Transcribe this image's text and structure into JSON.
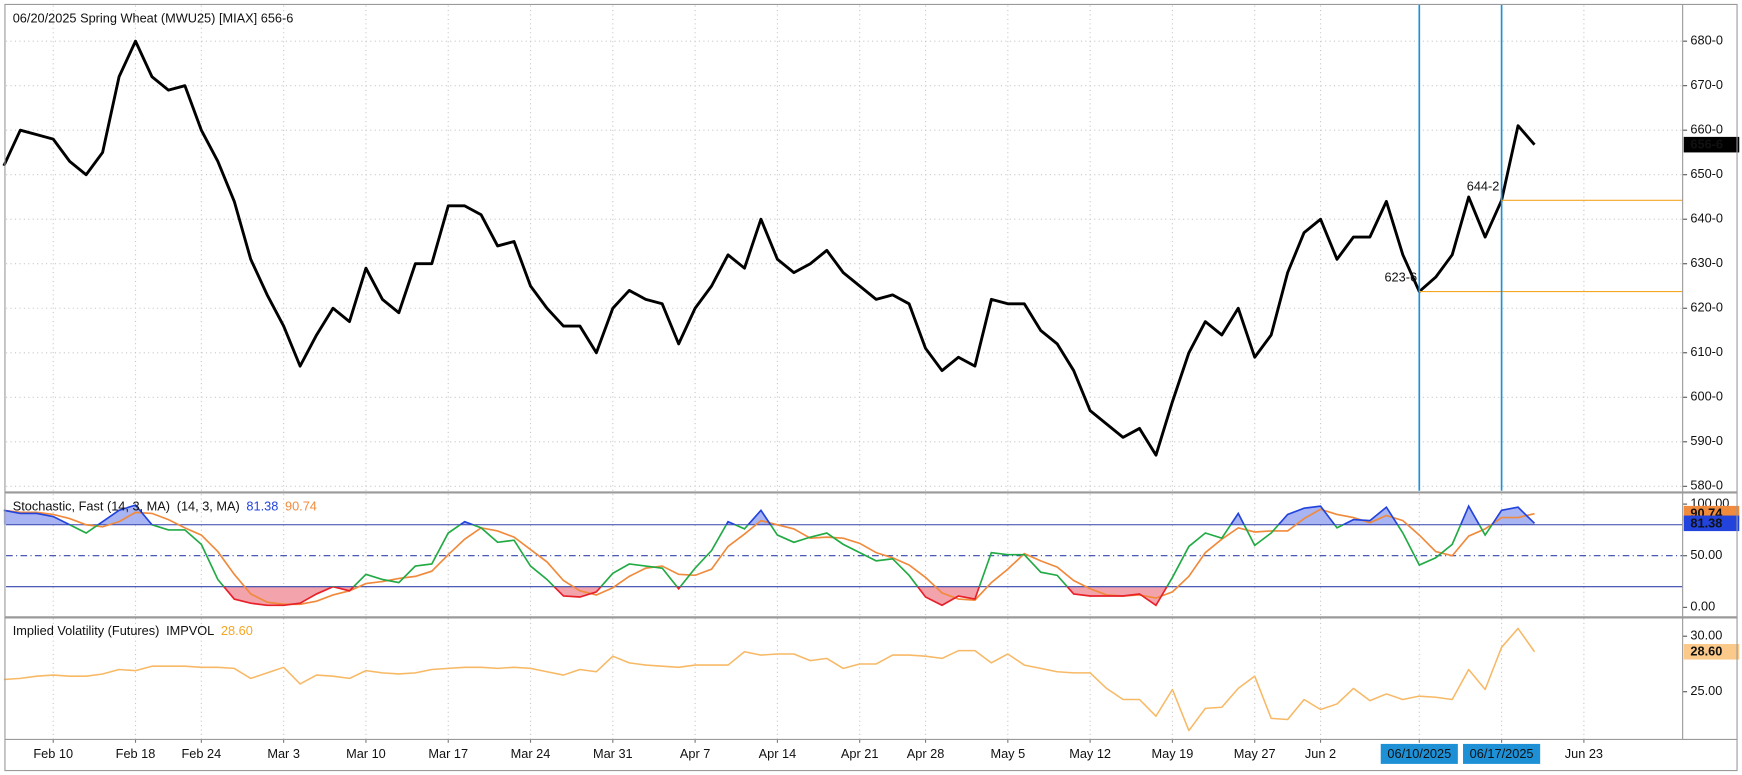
{
  "chart_data": [
    {
      "type": "line",
      "title": "06/20/2025  Spring Wheat (MWU25) [MIAX]  656-6",
      "categories": [
        null,
        null,
        null,
        "Feb 10",
        null,
        null,
        null,
        null,
        "Feb 18",
        null,
        null,
        null,
        "Feb 24",
        null,
        null,
        null,
        null,
        "Mar 3",
        null,
        null,
        null,
        null,
        "Mar 10",
        null,
        null,
        null,
        null,
        "Mar 17",
        null,
        null,
        null,
        null,
        "Mar 24",
        null,
        null,
        null,
        null,
        "Mar 31",
        null,
        null,
        null,
        null,
        "Apr 7",
        null,
        null,
        null,
        null,
        "Apr 14",
        null,
        null,
        null,
        null,
        "Apr 21",
        null,
        null,
        null,
        "Apr 28",
        null,
        null,
        null,
        null,
        "May 5",
        null,
        null,
        null,
        null,
        "May 12",
        null,
        null,
        null,
        null,
        "May 19",
        null,
        null,
        null,
        null,
        "May 27",
        null,
        null,
        null,
        "Jun 2",
        null,
        null,
        null,
        null,
        null,
        "06/10/2025",
        null,
        null,
        null,
        null,
        "06/17/2025",
        null,
        null,
        null,
        null,
        "Jun 23",
        null,
        null,
        null,
        null,
        null,
        null
      ],
      "series": [
        {
          "color": "#000000",
          "values": [
            652,
            660,
            659,
            658,
            653,
            650,
            655,
            672,
            680,
            672,
            669,
            670,
            660,
            653,
            644,
            631,
            623,
            616,
            607,
            614,
            620,
            617,
            629,
            622,
            619,
            630,
            630,
            643,
            643,
            641,
            634,
            635,
            625,
            620,
            616,
            616,
            610,
            620,
            624,
            622,
            621,
            612,
            620,
            625,
            632,
            629,
            640,
            631,
            628,
            630,
            633,
            628,
            625,
            622,
            623,
            621,
            611,
            606,
            609,
            607,
            622,
            621,
            621,
            615,
            612,
            606,
            597,
            594,
            591,
            593,
            587,
            599,
            610,
            617,
            614,
            620,
            609,
            614,
            628,
            637,
            640,
            631,
            636,
            636,
            644,
            632,
            623.75,
            627,
            632,
            645,
            636,
            644.25,
            661,
            656.75,
            null,
            null,
            null,
            null,
            null,
            null,
            null,
            null,
            null
          ]
        }
      ],
      "ylim": [
        579,
        688
      ],
      "yticks": [
        {
          "value": 580,
          "label": "580-0"
        },
        {
          "value": 590,
          "label": "590-0"
        },
        {
          "value": 600,
          "label": "600-0"
        },
        {
          "value": 610,
          "label": "610-0"
        },
        {
          "value": 620,
          "label": "620-0"
        },
        {
          "value": 630,
          "label": "630-0"
        },
        {
          "value": 640,
          "label": "640-0"
        },
        {
          "value": 650,
          "label": "650-0"
        },
        {
          "value": 660,
          "label": "660-0"
        },
        {
          "value": 670,
          "label": "670-0"
        },
        {
          "value": 680,
          "label": "680-0"
        }
      ],
      "grid": true,
      "last": {
        "value": 656.75,
        "label": "656-6"
      },
      "vlines": [
        "06/10/2025",
        "06/17/2025"
      ],
      "vline_color": "#1e90d6",
      "hlines": [
        {
          "value": 623.75,
          "label": "623-6"
        },
        {
          "value": 644.25,
          "label": "644-2"
        }
      ],
      "hline_color": "#f5a623"
    },
    {
      "type": "stochastic",
      "title": "Stochastic, Fast (14, 3, MA)",
      "subtitle": "(14, 3, MA)",
      "series": [
        {
          "color": "#22aa44",
          "values": [
            94,
            91,
            91,
            88,
            80,
            72,
            83,
            94,
            99,
            80,
            75,
            75,
            61,
            27,
            8,
            4,
            2,
            2,
            4,
            13,
            20,
            16,
            32,
            27,
            24,
            40,
            42,
            72,
            83,
            77,
            63,
            65,
            40,
            27,
            11,
            10,
            15,
            33,
            42,
            40,
            38,
            18,
            38,
            55,
            83,
            76,
            94,
            70,
            63,
            68,
            72,
            61,
            53,
            45,
            47,
            31,
            10,
            2,
            11,
            8,
            53,
            51,
            51,
            34,
            31,
            13,
            11,
            11,
            11,
            13,
            2,
            29,
            59,
            72,
            67,
            91,
            60,
            72,
            90,
            96,
            98,
            77,
            85,
            84,
            97,
            72,
            41,
            48,
            61,
            98,
            70,
            94,
            97,
            81.38,
            null,
            null,
            null,
            null,
            null,
            null,
            null,
            null,
            null
          ]
        },
        {
          "color": "#f08a3c",
          "values": [
            94,
            92,
            92,
            90,
            86,
            80,
            78,
            83,
            92,
            91,
            85,
            77,
            70,
            54,
            32,
            13,
            5,
            3,
            3,
            6,
            12,
            16,
            23,
            25,
            28,
            30,
            35,
            51,
            66,
            77,
            74,
            68,
            56,
            44,
            26,
            16,
            12,
            19,
            30,
            38,
            40,
            32,
            31,
            37,
            59,
            71,
            84,
            80,
            76,
            67,
            68,
            67,
            62,
            53,
            48,
            41,
            29,
            14,
            8,
            7,
            24,
            37,
            52,
            45,
            39,
            26,
            18,
            12,
            11,
            12,
            9,
            15,
            30,
            53,
            66,
            77,
            73,
            74,
            74,
            86,
            95,
            90,
            87,
            82,
            89,
            84,
            70,
            54,
            50,
            69,
            76,
            87,
            87,
            90.74,
            null,
            null,
            null,
            null,
            null,
            null,
            null,
            null,
            null
          ]
        }
      ],
      "ylim": [
        -8.6,
        109.7
      ],
      "yticks": [
        {
          "value": 0,
          "label": "0.00"
        },
        {
          "value": 50,
          "label": "50.00"
        },
        {
          "value": 100,
          "label": "100.00"
        }
      ],
      "levels": [
        20,
        80
      ],
      "midline": 50,
      "level_color": "#3344aa",
      "line_high": "#2244dd",
      "line_low": "#e8202a",
      "fill_high": "#a9b4f2",
      "fill_low": "#f3a3ac"
    },
    {
      "type": "line",
      "title": "Implied Volatility (Futures)",
      "subtitle": "IMPVOL",
      "series": [
        {
          "color": "#f7b966",
          "values": [
            26.1,
            26.2,
            26.4,
            26.5,
            26.4,
            26.4,
            26.6,
            27.0,
            26.9,
            27.3,
            27.3,
            27.3,
            27.2,
            27.2,
            27.1,
            26.2,
            26.7,
            27.2,
            25.7,
            26.5,
            26.4,
            26.2,
            26.9,
            26.7,
            26.6,
            26.7,
            27.0,
            27.1,
            27.2,
            27.2,
            27.1,
            27.2,
            27.1,
            26.8,
            26.5,
            27.0,
            26.8,
            28.2,
            27.6,
            27.4,
            27.3,
            27.2,
            27.4,
            27.4,
            27.4,
            28.6,
            28.3,
            28.4,
            28.4,
            27.8,
            28.0,
            27.1,
            27.5,
            27.5,
            28.3,
            28.3,
            28.2,
            28.0,
            28.7,
            28.7,
            27.6,
            28.4,
            27.4,
            27.1,
            26.8,
            26.7,
            26.7,
            25.3,
            24.3,
            24.3,
            22.8,
            25.2,
            21.5,
            23.5,
            23.6,
            25.3,
            26.4,
            22.6,
            22.5,
            24.3,
            23.4,
            23.9,
            25.3,
            24.2,
            24.8,
            24.3,
            24.6,
            24.5,
            24.3,
            27.0,
            25.2,
            29.0,
            30.7,
            28.6,
            null,
            null,
            null,
            null,
            null,
            null,
            null,
            null,
            null
          ],
          "last_label": "28.60"
        }
      ],
      "ylim": [
        20.7,
        31.6
      ],
      "yticks": [
        {
          "value": 25,
          "label": "25.00"
        },
        {
          "value": 30,
          "label": "30.00"
        }
      ]
    }
  ]
}
